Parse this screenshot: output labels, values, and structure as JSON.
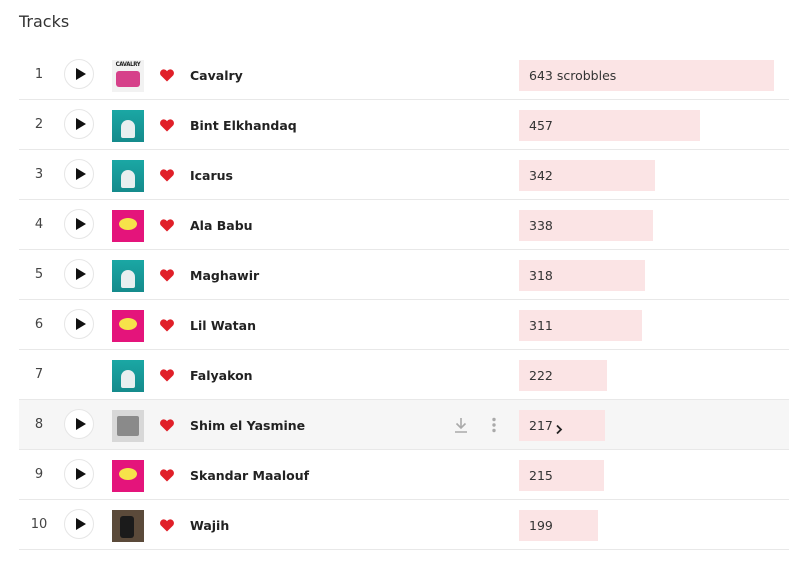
{
  "section": {
    "title": "Tracks"
  },
  "colors": {
    "heart": "#e01f28",
    "bar": "#fbe4e5"
  },
  "icons": {
    "play": "play-icon",
    "heart": "heart-icon",
    "download": "download-icon",
    "more": "more-icon",
    "chevron": "chevron-right-icon"
  },
  "tracks": [
    {
      "rank": "1",
      "name": "Cavalry",
      "scrobbles": "643 scrobbles",
      "count": 643,
      "art": "cav",
      "playable": true
    },
    {
      "rank": "2",
      "name": "Bint Elkhandaq",
      "scrobbles": "457",
      "count": 457,
      "art": "teal",
      "playable": true
    },
    {
      "rank": "3",
      "name": "Icarus",
      "scrobbles": "342",
      "count": 342,
      "art": "teal",
      "playable": true
    },
    {
      "rank": "4",
      "name": "Ala Babu",
      "scrobbles": "338",
      "count": 338,
      "art": "pink",
      "playable": true
    },
    {
      "rank": "5",
      "name": "Maghawir",
      "scrobbles": "318",
      "count": 318,
      "art": "teal",
      "playable": true
    },
    {
      "rank": "6",
      "name": "Lil Watan",
      "scrobbles": "311",
      "count": 311,
      "art": "pink",
      "playable": true
    },
    {
      "rank": "7",
      "name": "Falyakon",
      "scrobbles": "222",
      "count": 222,
      "art": "teal",
      "playable": false
    },
    {
      "rank": "8",
      "name": "Shim el Yasmine",
      "scrobbles": "217",
      "count": 217,
      "art": "grey",
      "playable": true,
      "hover": true
    },
    {
      "rank": "9",
      "name": "Skandar Maalouf",
      "scrobbles": "215",
      "count": 215,
      "art": "pink",
      "playable": true
    },
    {
      "rank": "10",
      "name": "Wajih",
      "scrobbles": "199",
      "count": 199,
      "art": "dark",
      "playable": true
    }
  ]
}
